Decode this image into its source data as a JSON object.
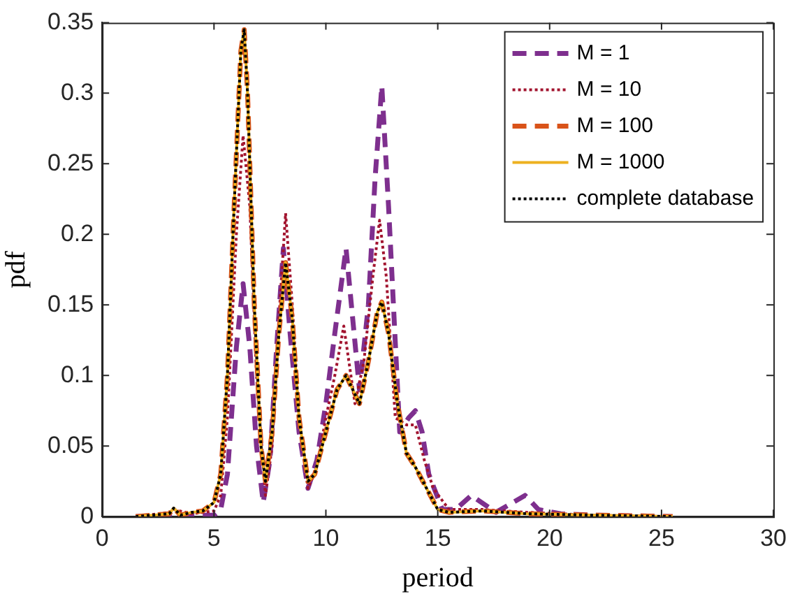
{
  "chart_data": {
    "type": "line",
    "xlabel": "period",
    "ylabel": "pdf",
    "xlim": [
      0,
      30
    ],
    "ylim": [
      0,
      0.35
    ],
    "xticks": [
      0,
      5,
      10,
      15,
      20,
      25,
      30
    ],
    "yticks": [
      0,
      0.05,
      0.1,
      0.15,
      0.2,
      0.25,
      0.3,
      0.35
    ],
    "grid": false,
    "legend": "top right",
    "marker": "none",
    "series": [
      {
        "name": "M = 1",
        "color": "#7e2f8e",
        "line_style": "dashed",
        "x": [
          1.5,
          3,
          4,
          5,
          5.3,
          5.6,
          6.0,
          6.3,
          6.6,
          6.9,
          7.2,
          7.5,
          7.8,
          8.1,
          8.4,
          8.8,
          9.2,
          9.6,
          10,
          10.4,
          10.9,
          11.2,
          11.5,
          11.9,
          12.2,
          12.5,
          12.8,
          13.3,
          13.7,
          14,
          14.3,
          14.6,
          15.2,
          15.8,
          16.5,
          17.6,
          18.9,
          19.5,
          20.5,
          22,
          25.5
        ],
        "values": [
          0,
          0.001,
          0.001,
          0.001,
          0.005,
          0.03,
          0.12,
          0.165,
          0.12,
          0.05,
          0.01,
          0.04,
          0.12,
          0.19,
          0.13,
          0.06,
          0.02,
          0.04,
          0.08,
          0.13,
          0.19,
          0.14,
          0.09,
          0.15,
          0.24,
          0.305,
          0.22,
          0.06,
          0.07,
          0.075,
          0.06,
          0.03,
          0.005,
          0.005,
          0.015,
          0.003,
          0.015,
          0.005,
          0.002,
          0.001,
          0
        ]
      },
      {
        "name": "M = 10",
        "color": "#a2142f",
        "line_style": "dotted",
        "x": [
          1.5,
          3,
          3.2,
          4,
          5,
          5.3,
          5.6,
          6.0,
          6.3,
          6.6,
          6.9,
          7.3,
          7.6,
          7.9,
          8.2,
          8.5,
          8.8,
          9.2,
          9.6,
          10,
          10.4,
          10.8,
          11.3,
          11.7,
          12.1,
          12.4,
          12.7,
          13.1,
          13.6,
          14,
          14.4,
          14.8,
          15.5,
          17,
          19,
          22,
          25.5
        ],
        "values": [
          0,
          0.003,
          0.005,
          0.002,
          0.004,
          0.015,
          0.07,
          0.2,
          0.27,
          0.22,
          0.1,
          0.015,
          0.05,
          0.14,
          0.215,
          0.15,
          0.07,
          0.02,
          0.035,
          0.07,
          0.1,
          0.135,
          0.08,
          0.11,
          0.17,
          0.21,
          0.17,
          0.07,
          0.065,
          0.065,
          0.04,
          0.02,
          0.005,
          0.005,
          0.003,
          0.001,
          0
        ]
      },
      {
        "name": "M = 100",
        "color": "#d95319",
        "line_style": "dashed",
        "x": [
          1.5,
          3,
          3.2,
          3.5,
          4,
          4.5,
          5,
          5.3,
          5.6,
          5.9,
          6.2,
          6.35,
          6.5,
          6.8,
          7.1,
          7.3,
          7.6,
          7.9,
          8.2,
          8.5,
          8.8,
          9.2,
          9.5,
          10,
          10.5,
          10.9,
          11.2,
          11.5,
          11.9,
          12.3,
          12.5,
          12.8,
          13.2,
          13.6,
          14,
          14.5,
          15,
          15.5,
          17,
          19,
          22,
          25.5
        ],
        "values": [
          0,
          0.002,
          0.006,
          0.001,
          0.003,
          0.004,
          0.01,
          0.03,
          0.1,
          0.22,
          0.33,
          0.345,
          0.3,
          0.15,
          0.05,
          0.025,
          0.06,
          0.13,
          0.18,
          0.14,
          0.07,
          0.025,
          0.03,
          0.06,
          0.09,
          0.1,
          0.09,
          0.08,
          0.11,
          0.145,
          0.152,
          0.13,
          0.08,
          0.045,
          0.035,
          0.02,
          0.005,
          0.003,
          0.004,
          0.002,
          0.001,
          0
        ]
      },
      {
        "name": "M = 1000",
        "color": "#edb120",
        "line_style": "solid",
        "x": [
          1.5,
          3,
          3.2,
          3.5,
          4,
          4.5,
          5,
          5.3,
          5.6,
          5.9,
          6.2,
          6.35,
          6.5,
          6.8,
          7.1,
          7.3,
          7.6,
          7.9,
          8.2,
          8.5,
          8.8,
          9.2,
          9.5,
          10,
          10.5,
          10.9,
          11.2,
          11.5,
          11.9,
          12.3,
          12.5,
          12.8,
          13.2,
          13.6,
          14,
          14.5,
          15,
          15.5,
          17,
          19,
          22,
          25.5
        ],
        "values": [
          0,
          0.002,
          0.006,
          0.001,
          0.003,
          0.004,
          0.01,
          0.03,
          0.1,
          0.22,
          0.33,
          0.345,
          0.3,
          0.15,
          0.05,
          0.025,
          0.06,
          0.13,
          0.18,
          0.14,
          0.07,
          0.025,
          0.03,
          0.06,
          0.09,
          0.1,
          0.09,
          0.08,
          0.11,
          0.145,
          0.152,
          0.13,
          0.08,
          0.045,
          0.035,
          0.02,
          0.005,
          0.003,
          0.004,
          0.002,
          0.001,
          0
        ]
      },
      {
        "name": "complete database",
        "color": "#000000",
        "line_style": "dotted",
        "x": [
          1.5,
          3,
          3.2,
          3.5,
          4,
          4.5,
          5,
          5.3,
          5.6,
          5.9,
          6.2,
          6.35,
          6.5,
          6.8,
          7.1,
          7.3,
          7.6,
          7.9,
          8.2,
          8.5,
          8.8,
          9.2,
          9.5,
          10,
          10.5,
          10.9,
          11.2,
          11.5,
          11.9,
          12.3,
          12.5,
          12.8,
          13.2,
          13.6,
          14,
          14.5,
          15,
          15.5,
          17,
          19,
          22,
          25.5
        ],
        "values": [
          0,
          0.002,
          0.006,
          0.001,
          0.003,
          0.004,
          0.01,
          0.03,
          0.1,
          0.22,
          0.33,
          0.345,
          0.3,
          0.15,
          0.05,
          0.025,
          0.06,
          0.13,
          0.18,
          0.14,
          0.07,
          0.025,
          0.03,
          0.06,
          0.09,
          0.1,
          0.09,
          0.08,
          0.11,
          0.145,
          0.152,
          0.13,
          0.08,
          0.045,
          0.035,
          0.02,
          0.005,
          0.003,
          0.004,
          0.002,
          0.001,
          0
        ]
      }
    ]
  }
}
